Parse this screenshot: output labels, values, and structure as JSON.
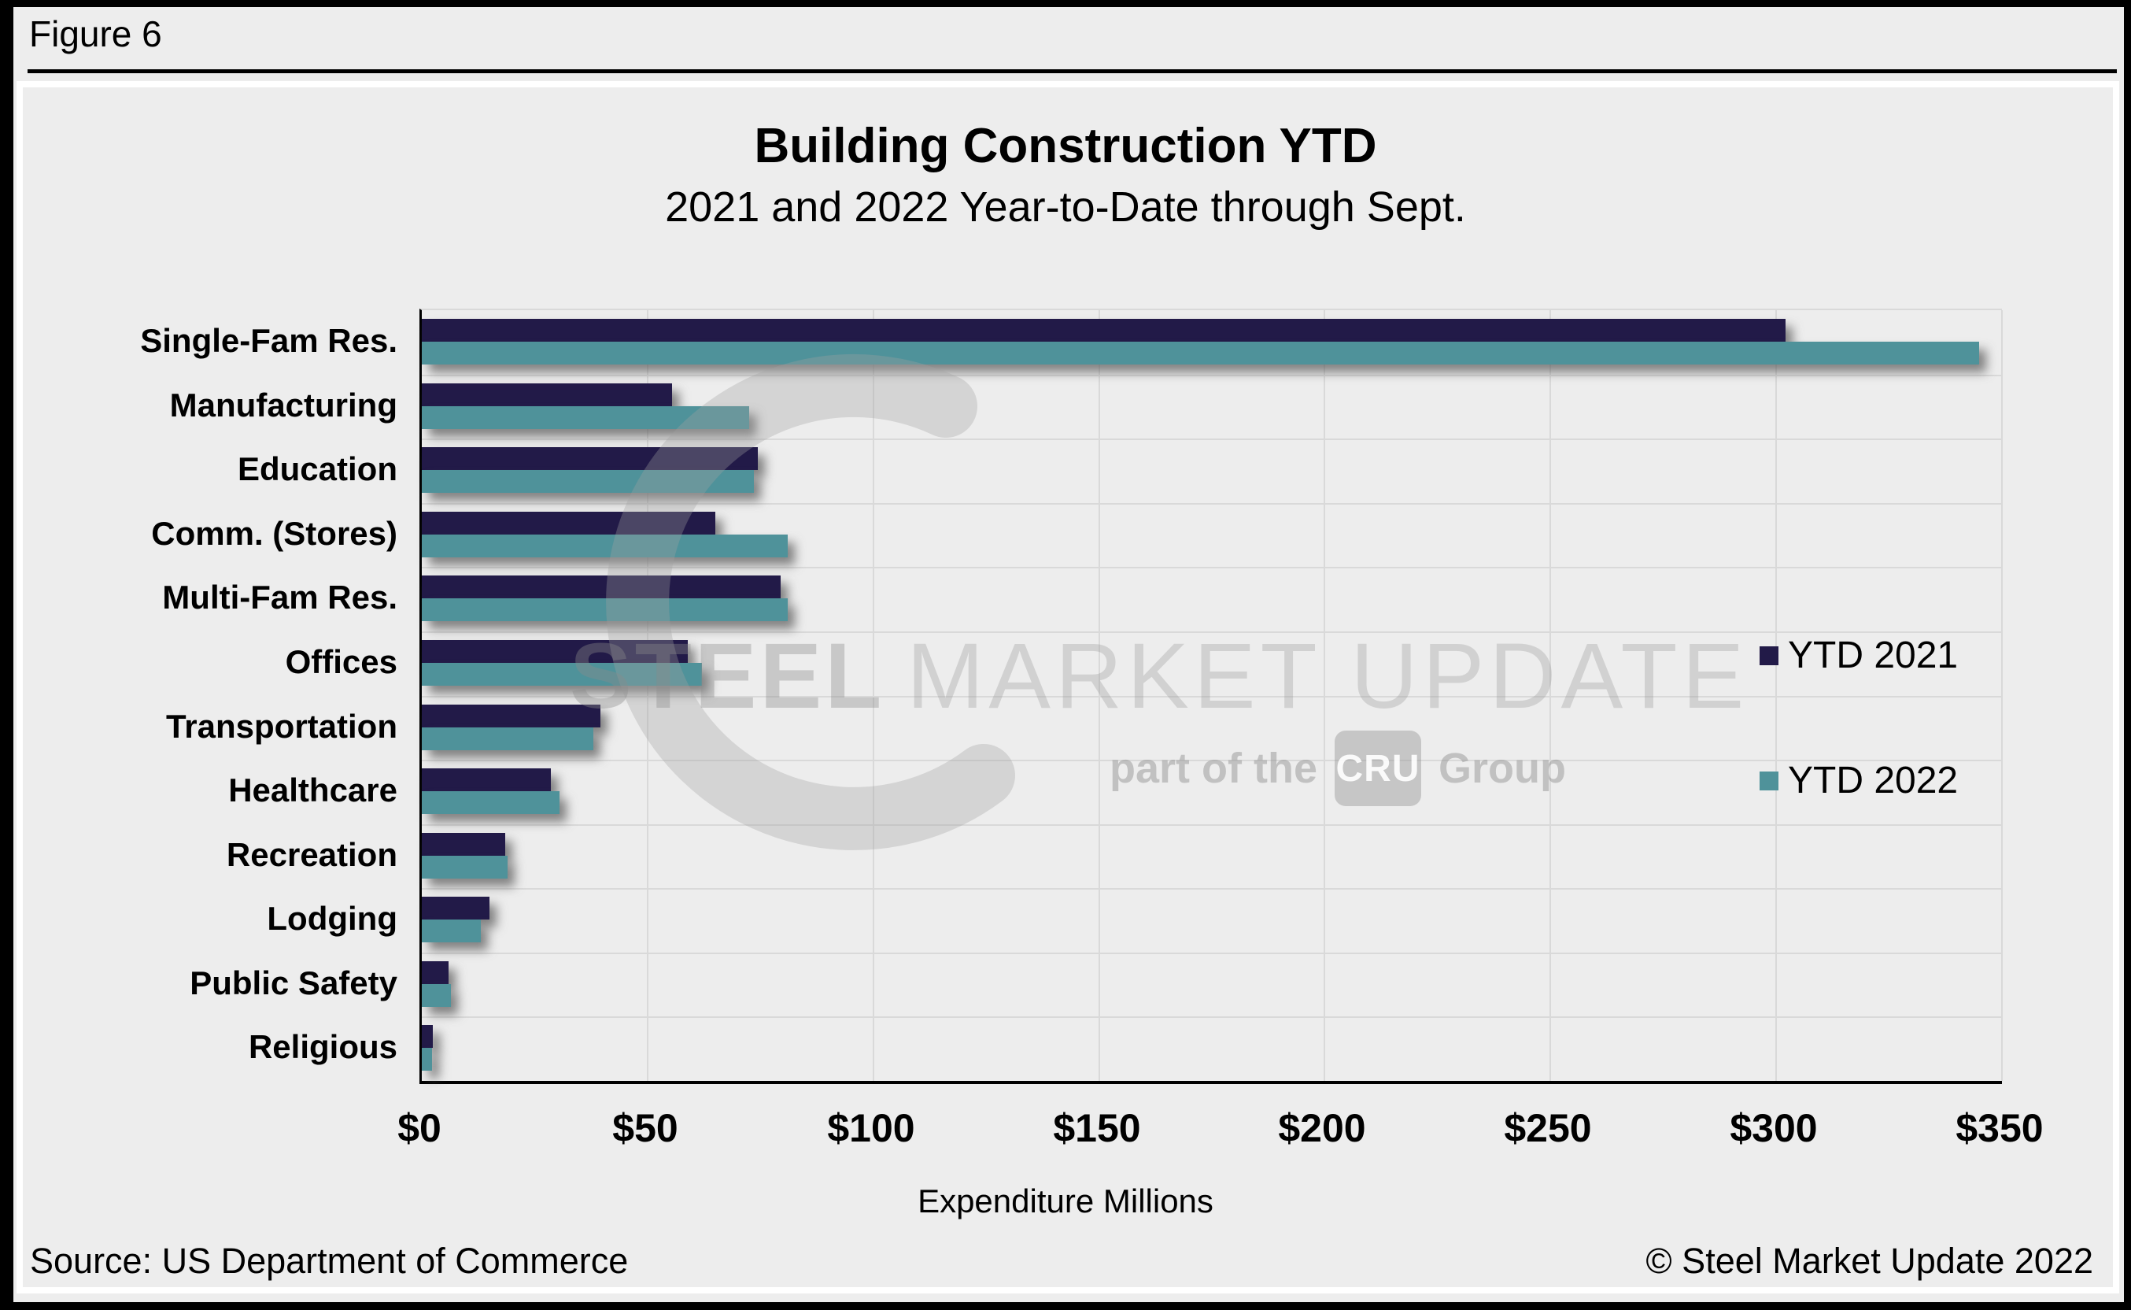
{
  "figure_label": "Figure 6",
  "header": {
    "title": "Building Construction YTD",
    "subtitle": "2021 and 2022 Year-to-Date through Sept."
  },
  "footer": {
    "source": "Source: US Department of Commerce",
    "copyright": "© Steel Market Update 2022"
  },
  "watermark": {
    "word_bold": "STEEL",
    "word_light": "MARKET UPDATE",
    "tagline_prefix": "part of the",
    "tagline_box": "CRU",
    "tagline_suffix": "Group"
  },
  "colors": {
    "ytd2021": "#221a48",
    "ytd2022": "#4f929a",
    "background": "#ededed",
    "gridline": "#d9d9d9",
    "axis": "#000000"
  },
  "chart_data": {
    "type": "bar",
    "orientation": "horizontal",
    "title": "Building Construction YTD",
    "subtitle": "2021 and 2022 Year-to-Date through Sept.",
    "xlabel": "Expenditure Millions",
    "xlim": [
      0,
      350
    ],
    "x_ticks": [
      0,
      50,
      100,
      150,
      200,
      250,
      300,
      350
    ],
    "x_tick_labels": [
      "$0",
      "$50",
      "$100",
      "$150",
      "$200",
      "$250",
      "$300",
      "$350"
    ],
    "grid": true,
    "legend_position": "right-middle",
    "categories": [
      "Single-Fam Res.",
      "Manufacturing",
      "Education",
      "Comm. (Stores)",
      "Multi-Fam Res.",
      "Offices",
      "Transportation",
      "Healthcare",
      "Recreation",
      "Lodging",
      "Public Safety",
      "Religious"
    ],
    "series": [
      {
        "name": "YTD 2021",
        "color": "#221a48",
        "values": [
          302,
          55.5,
          74.5,
          65,
          79.5,
          59,
          39.5,
          28.5,
          18.5,
          15,
          6,
          2.5
        ]
      },
      {
        "name": "YTD 2022",
        "color": "#4f929a",
        "values": [
          345,
          72.5,
          73.5,
          81,
          81,
          62,
          38,
          30.5,
          19,
          13,
          6.5,
          2.2
        ]
      }
    ]
  }
}
